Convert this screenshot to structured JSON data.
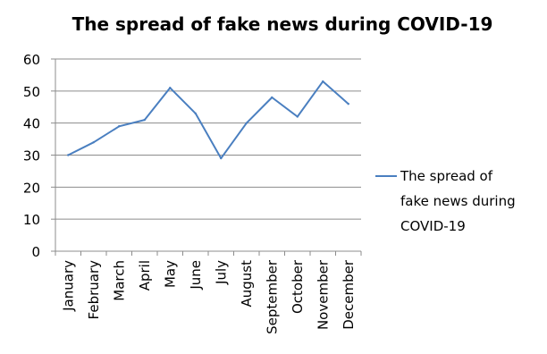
{
  "chart_data": {
    "type": "line",
    "title": "The spread of fake news during COVID-19",
    "xlabel": "",
    "ylabel": "",
    "categories": [
      "January",
      "February",
      "March",
      "April",
      "May",
      "June",
      "July",
      "August",
      "September",
      "October",
      "November",
      "December"
    ],
    "series": [
      {
        "name": "The spread of fake news during COVID-19",
        "values": [
          30,
          34,
          39,
          41,
          51,
          43,
          29,
          40,
          48,
          42,
          53,
          46
        ],
        "color": "#4a7fc0"
      }
    ],
    "ylim": [
      0,
      60
    ],
    "yticks": [
      "0",
      "10",
      "20",
      "30",
      "40",
      "50",
      "60"
    ],
    "grid": true,
    "legend_position": "right",
    "legend_lines": [
      "The spread of",
      "fake news during",
      "COVID-19"
    ]
  }
}
